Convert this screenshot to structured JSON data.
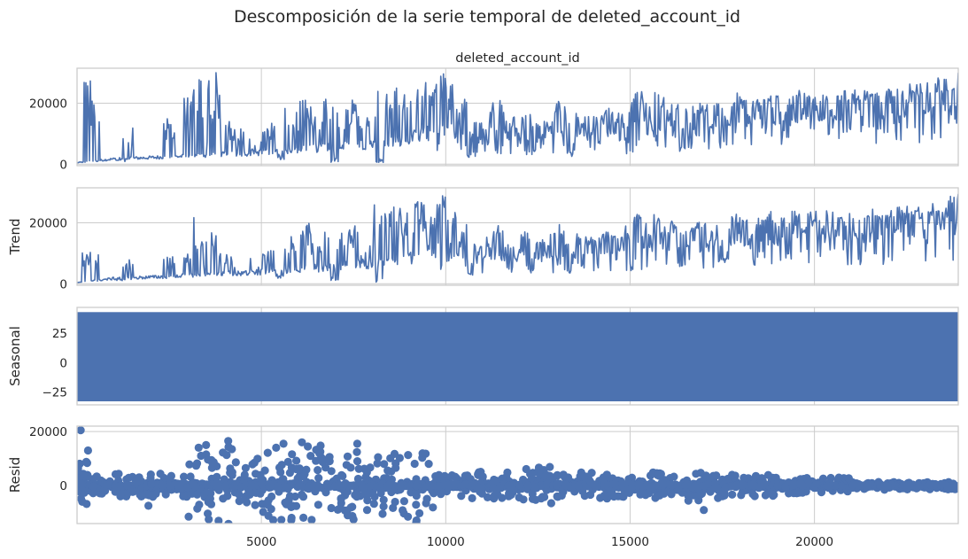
{
  "colors": {
    "line": "#4c72b0",
    "grid": "#cccccc",
    "text": "#262626"
  },
  "chart_data": {
    "type": "line",
    "title": "Descomposición de la serie temporal de deleted_account_id",
    "x": {
      "min": 1,
      "max": 23900,
      "ticks": [
        5000,
        10000,
        15000,
        20000
      ],
      "grid": true
    },
    "panels": [
      {
        "name": "observed",
        "subtitle": "deleted_account_id",
        "ylabel": "",
        "kind": "line",
        "ylim": [
          -500,
          31500
        ],
        "yticks": [
          0,
          20000
        ],
        "baseline": [
          [
            1,
            500
          ],
          [
            1000,
            1800
          ],
          [
            2500,
            2500
          ],
          [
            5000,
            4000
          ],
          [
            7000,
            6000
          ],
          [
            8500,
            7500
          ],
          [
            10000,
            12000
          ],
          [
            12000,
            11000
          ],
          [
            15000,
            14500
          ],
          [
            18000,
            17500
          ],
          [
            20000,
            20000
          ],
          [
            22000,
            21000
          ],
          [
            23000,
            23000
          ],
          [
            23900,
            25000
          ]
        ],
        "spikes": [
          [
            300,
            30500
          ],
          [
            450,
            21000
          ],
          [
            1400,
            14500
          ],
          [
            2500,
            15000
          ],
          [
            3050,
            23000
          ],
          [
            3250,
            30000
          ],
          [
            3700,
            30500
          ],
          [
            3900,
            24500
          ],
          [
            4100,
            14000
          ],
          [
            4400,
            12000
          ],
          [
            5200,
            14000
          ],
          [
            5800,
            18500
          ],
          [
            6200,
            22000
          ],
          [
            6500,
            15500
          ],
          [
            6800,
            21500
          ],
          [
            7200,
            18500
          ],
          [
            7500,
            22500
          ],
          [
            8200,
            27000
          ],
          [
            8500,
            28000
          ],
          [
            8800,
            30500
          ],
          [
            9300,
            29500
          ],
          [
            9700,
            27000
          ],
          [
            9900,
            30500
          ],
          [
            10200,
            27000
          ],
          [
            10600,
            22000
          ],
          [
            11400,
            21500
          ],
          [
            12200,
            18500
          ],
          [
            13100,
            22000
          ],
          [
            14400,
            18500
          ],
          [
            15200,
            24500
          ],
          [
            15800,
            23500
          ],
          [
            16200,
            21000
          ],
          [
            16900,
            21500
          ],
          [
            17900,
            23500
          ],
          [
            18700,
            24000
          ],
          [
            19500,
            24500
          ],
          [
            21600,
            24000
          ],
          [
            22700,
            24000
          ]
        ],
        "dips": [
          [
            1200,
            500
          ],
          [
            5500,
            1500
          ],
          [
            7000,
            500
          ],
          [
            8200,
            500
          ],
          [
            10700,
            1800
          ],
          [
            12300,
            3000
          ],
          [
            13400,
            2500
          ],
          [
            15000,
            3000
          ],
          [
            16400,
            4000
          ],
          [
            17500,
            6000
          ],
          [
            19000,
            12000
          ],
          [
            20200,
            14000
          ]
        ],
        "end_value": 30000
      },
      {
        "name": "trend",
        "subtitle": "",
        "ylabel": "Trend",
        "kind": "line",
        "ylim": [
          -500,
          31500
        ],
        "yticks": [
          0,
          20000
        ],
        "baseline": [
          [
            1,
            500
          ],
          [
            1000,
            1800
          ],
          [
            2500,
            2500
          ],
          [
            5000,
            4000
          ],
          [
            7000,
            6000
          ],
          [
            8500,
            7500
          ],
          [
            10000,
            12000
          ],
          [
            12000,
            11000
          ],
          [
            15000,
            14500
          ],
          [
            18000,
            17500
          ],
          [
            20000,
            20000
          ],
          [
            22000,
            21000
          ],
          [
            23000,
            23000
          ],
          [
            23900,
            25000
          ]
        ],
        "spikes": [
          [
            300,
            10500
          ],
          [
            450,
            11000
          ],
          [
            1400,
            8000
          ],
          [
            2500,
            9000
          ],
          [
            3050,
            10000
          ],
          [
            3250,
            22000
          ],
          [
            3700,
            21000
          ],
          [
            3900,
            12000
          ],
          [
            4100,
            11000
          ],
          [
            5200,
            12000
          ],
          [
            5800,
            16000
          ],
          [
            6200,
            20000
          ],
          [
            6500,
            14000
          ],
          [
            6800,
            19000
          ],
          [
            7200,
            18000
          ],
          [
            7500,
            20000
          ],
          [
            8200,
            26000
          ],
          [
            8500,
            27000
          ],
          [
            8800,
            25000
          ],
          [
            9300,
            27000
          ],
          [
            9700,
            26000
          ],
          [
            9900,
            29500
          ],
          [
            10200,
            26000
          ],
          [
            10600,
            20000
          ],
          [
            11400,
            20000
          ],
          [
            12200,
            18000
          ],
          [
            13100,
            20000
          ],
          [
            14400,
            17000
          ],
          [
            15200,
            24500
          ],
          [
            15800,
            23000
          ],
          [
            16200,
            21000
          ],
          [
            16900,
            21000
          ],
          [
            17900,
            23000
          ],
          [
            18700,
            24000
          ],
          [
            19500,
            24000
          ],
          [
            21600,
            23500
          ],
          [
            22700,
            24000
          ]
        ],
        "dips": [
          [
            1200,
            700
          ],
          [
            5500,
            1500
          ],
          [
            7000,
            800
          ],
          [
            8200,
            500
          ],
          [
            10700,
            2500
          ],
          [
            12300,
            3500
          ],
          [
            13400,
            3000
          ],
          [
            15000,
            4000
          ],
          [
            16400,
            5000
          ],
          [
            17500,
            7000
          ],
          [
            19000,
            12500
          ],
          [
            20200,
            14500
          ]
        ],
        "end_value": 29500
      },
      {
        "name": "seasonal",
        "subtitle": "",
        "ylabel": "Seasonal",
        "kind": "band",
        "ylim": [
          -36,
          47
        ],
        "yticks": [
          -25,
          0,
          25
        ],
        "band": [
          -33,
          43
        ]
      },
      {
        "name": "resid",
        "subtitle": "",
        "ylabel": "Resid",
        "kind": "scatter",
        "ylim": [
          -14000,
          22000
        ],
        "yticks": [
          0,
          20000
        ],
        "bursts": [
          [
            0,
            300,
            9000
          ],
          [
            300,
            1000,
            3500
          ],
          [
            1000,
            1800,
            5000
          ],
          [
            1800,
            2500,
            7500
          ],
          [
            2500,
            3000,
            4500
          ],
          [
            3000,
            3500,
            12000
          ],
          [
            3500,
            4300,
            16000
          ],
          [
            4300,
            5000,
            10000
          ],
          [
            5000,
            6000,
            13000
          ],
          [
            6000,
            6700,
            15000
          ],
          [
            6700,
            7700,
            12500
          ],
          [
            7700,
            8400,
            11000
          ],
          [
            8400,
            9200,
            12000
          ],
          [
            9200,
            9700,
            13500
          ],
          [
            9700,
            10500,
            4000
          ],
          [
            10500,
            12000,
            5500
          ],
          [
            12000,
            13000,
            7000
          ],
          [
            13000,
            14500,
            5000
          ],
          [
            14500,
            15500,
            4500
          ],
          [
            15500,
            16500,
            5000
          ],
          [
            16500,
            17500,
            7000
          ],
          [
            17500,
            19000,
            4000
          ],
          [
            19000,
            21000,
            3000
          ],
          [
            21000,
            23900,
            1500
          ]
        ],
        "outliers": [
          [
            100,
            20500
          ],
          [
            300,
            13000
          ],
          [
            3300,
            14000
          ],
          [
            3500,
            15000
          ],
          [
            4100,
            16500
          ],
          [
            4200,
            13500
          ],
          [
            5400,
            14000
          ],
          [
            5600,
            15500
          ],
          [
            6100,
            16000
          ],
          [
            6600,
            12500
          ],
          [
            7600,
            15500
          ],
          [
            7500,
            -12500
          ],
          [
            9200,
            -13500
          ],
          [
            17000,
            -9000
          ]
        ]
      }
    ]
  }
}
